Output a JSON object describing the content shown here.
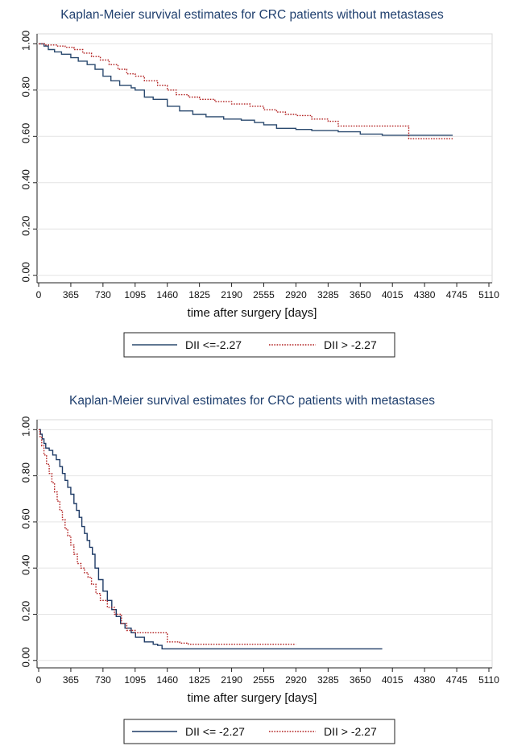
{
  "chart_data": [
    {
      "type": "line",
      "title": "Kaplan-Meier survival estimates for CRC patients without metastases",
      "xlabel": "time after surgery [days]",
      "ylabel": "",
      "xlim": [
        0,
        5110
      ],
      "ylim": [
        0,
        1
      ],
      "x_ticks": [
        "0",
        "365",
        "730",
        "1095",
        "1460",
        "1825",
        "2190",
        "2555",
        "2920",
        "3285",
        "3650",
        "4015",
        "4380",
        "4745",
        "5110"
      ],
      "y_ticks": [
        "0.00",
        "0.20",
        "0.40",
        "0.60",
        "0.80",
        "1.00"
      ],
      "grid": "horizontal",
      "legend_position": "bottom",
      "series": [
        {
          "name": "DII <=-2.27",
          "color": "#2b4a6f",
          "style": "solid",
          "points": [
            [
              0,
              1.0
            ],
            [
              60,
              0.99
            ],
            [
              110,
              0.975
            ],
            [
              180,
              0.965
            ],
            [
              260,
              0.955
            ],
            [
              365,
              0.94
            ],
            [
              450,
              0.925
            ],
            [
              550,
              0.91
            ],
            [
              640,
              0.89
            ],
            [
              730,
              0.86
            ],
            [
              820,
              0.84
            ],
            [
              920,
              0.82
            ],
            [
              1050,
              0.81
            ],
            [
              1095,
              0.8
            ],
            [
              1200,
              0.77
            ],
            [
              1300,
              0.76
            ],
            [
              1460,
              0.73
            ],
            [
              1600,
              0.71
            ],
            [
              1750,
              0.695
            ],
            [
              1900,
              0.685
            ],
            [
              2100,
              0.675
            ],
            [
              2300,
              0.67
            ],
            [
              2450,
              0.66
            ],
            [
              2555,
              0.65
            ],
            [
              2700,
              0.635
            ],
            [
              2920,
              0.63
            ],
            [
              3100,
              0.625
            ],
            [
              3400,
              0.62
            ],
            [
              3650,
              0.61
            ],
            [
              3900,
              0.605
            ],
            [
              4200,
              0.605
            ],
            [
              4700,
              0.605
            ]
          ]
        },
        {
          "name": "DII > -2.27",
          "color": "#b22222",
          "style": "dotted",
          "points": [
            [
              0,
              1.0
            ],
            [
              80,
              0.995
            ],
            [
              200,
              0.99
            ],
            [
              300,
              0.985
            ],
            [
              400,
              0.975
            ],
            [
              500,
              0.96
            ],
            [
              600,
              0.945
            ],
            [
              700,
              0.93
            ],
            [
              800,
              0.91
            ],
            [
              900,
              0.89
            ],
            [
              1000,
              0.87
            ],
            [
              1095,
              0.86
            ],
            [
              1200,
              0.84
            ],
            [
              1350,
              0.82
            ],
            [
              1460,
              0.8
            ],
            [
              1560,
              0.78
            ],
            [
              1700,
              0.77
            ],
            [
              1825,
              0.76
            ],
            [
              2000,
              0.75
            ],
            [
              2190,
              0.74
            ],
            [
              2400,
              0.73
            ],
            [
              2555,
              0.715
            ],
            [
              2700,
              0.705
            ],
            [
              2800,
              0.695
            ],
            [
              2920,
              0.69
            ],
            [
              3100,
              0.675
            ],
            [
              3285,
              0.665
            ],
            [
              3400,
              0.645
            ],
            [
              3650,
              0.645
            ],
            [
              3900,
              0.645
            ],
            [
              4150,
              0.645
            ],
            [
              4200,
              0.59
            ],
            [
              4700,
              0.59
            ]
          ]
        }
      ]
    },
    {
      "type": "line",
      "title": "Kaplan-Meier survival estimates for CRC patients with metastases",
      "xlabel": "time after surgery [days]",
      "ylabel": "",
      "xlim": [
        0,
        5110
      ],
      "ylim": [
        0,
        1
      ],
      "x_ticks": [
        "0",
        "365",
        "730",
        "1095",
        "1460",
        "1825",
        "2190",
        "2555",
        "2920",
        "3285",
        "3650",
        "4015",
        "4380",
        "4745",
        "5110"
      ],
      "y_ticks": [
        "0.00",
        "0.20",
        "0.40",
        "0.60",
        "0.80",
        "1.00"
      ],
      "grid": "horizontal",
      "legend_position": "bottom",
      "series": [
        {
          "name": "DII <= -2.27",
          "color": "#1f3b66",
          "style": "solid",
          "points": [
            [
              0,
              1.0
            ],
            [
              20,
              0.98
            ],
            [
              40,
              0.96
            ],
            [
              60,
              0.94
            ],
            [
              80,
              0.92
            ],
            [
              120,
              0.91
            ],
            [
              160,
              0.89
            ],
            [
              200,
              0.87
            ],
            [
              240,
              0.84
            ],
            [
              270,
              0.81
            ],
            [
              300,
              0.78
            ],
            [
              330,
              0.75
            ],
            [
              365,
              0.72
            ],
            [
              400,
              0.68
            ],
            [
              430,
              0.65
            ],
            [
              460,
              0.62
            ],
            [
              490,
              0.58
            ],
            [
              520,
              0.55
            ],
            [
              550,
              0.52
            ],
            [
              580,
              0.49
            ],
            [
              610,
              0.46
            ],
            [
              640,
              0.4
            ],
            [
              680,
              0.35
            ],
            [
              730,
              0.3
            ],
            [
              780,
              0.26
            ],
            [
              830,
              0.22
            ],
            [
              880,
              0.19
            ],
            [
              930,
              0.16
            ],
            [
              980,
              0.14
            ],
            [
              1050,
              0.12
            ],
            [
              1100,
              0.1
            ],
            [
              1200,
              0.08
            ],
            [
              1300,
              0.07
            ],
            [
              1350,
              0.065
            ],
            [
              1400,
              0.05
            ],
            [
              1800,
              0.05
            ],
            [
              2500,
              0.05
            ],
            [
              3000,
              0.05
            ],
            [
              3500,
              0.05
            ],
            [
              3900,
              0.05
            ]
          ]
        },
        {
          "name": "DII > -2.27",
          "color": "#b22222",
          "style": "dotted",
          "points": [
            [
              0,
              1.0
            ],
            [
              15,
              0.97
            ],
            [
              35,
              0.93
            ],
            [
              60,
              0.89
            ],
            [
              90,
              0.85
            ],
            [
              120,
              0.81
            ],
            [
              150,
              0.77
            ],
            [
              180,
              0.73
            ],
            [
              210,
              0.69
            ],
            [
              240,
              0.65
            ],
            [
              270,
              0.61
            ],
            [
              300,
              0.57
            ],
            [
              330,
              0.54
            ],
            [
              365,
              0.5
            ],
            [
              400,
              0.46
            ],
            [
              440,
              0.42
            ],
            [
              480,
              0.4
            ],
            [
              520,
              0.38
            ],
            [
              560,
              0.36
            ],
            [
              600,
              0.33
            ],
            [
              650,
              0.29
            ],
            [
              700,
              0.26
            ],
            [
              780,
              0.23
            ],
            [
              860,
              0.2
            ],
            [
              940,
              0.16
            ],
            [
              1000,
              0.13
            ],
            [
              1095,
              0.12
            ],
            [
              1300,
              0.12
            ],
            [
              1420,
              0.12
            ],
            [
              1460,
              0.08
            ],
            [
              1600,
              0.075
            ],
            [
              1700,
              0.07
            ],
            [
              1825,
              0.07
            ],
            [
              2200,
              0.07
            ],
            [
              2600,
              0.07
            ],
            [
              2920,
              0.07
            ]
          ]
        }
      ]
    }
  ]
}
